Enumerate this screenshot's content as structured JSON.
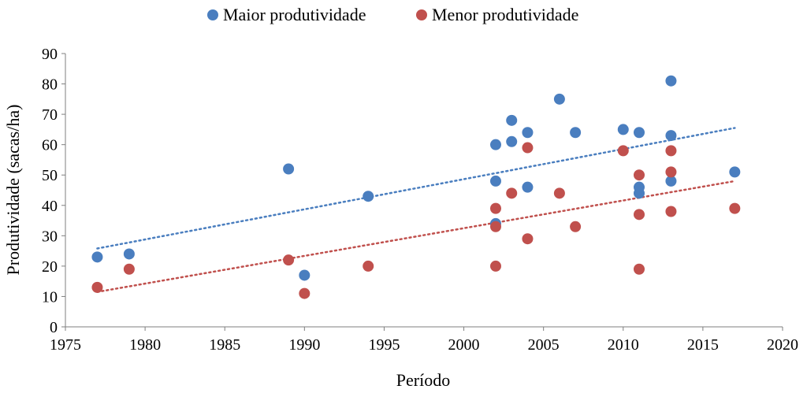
{
  "chart_data": {
    "type": "scatter",
    "xlabel": "Período",
    "ylabel": "Produtividade (sacas/ha)",
    "xlim": [
      1975,
      2020
    ],
    "ylim": [
      0,
      90
    ],
    "xticks": [
      1975,
      1980,
      1985,
      1990,
      1995,
      2000,
      2005,
      2010,
      2015,
      2020
    ],
    "yticks": [
      0,
      10,
      20,
      30,
      40,
      50,
      60,
      70,
      80,
      90
    ],
    "legend_position": "top-center",
    "grid": false,
    "series": [
      {
        "name": "Maior produtividade",
        "color": "#4a7ebf",
        "points": [
          [
            1977,
            23
          ],
          [
            1979,
            24
          ],
          [
            1989,
            52
          ],
          [
            1990,
            17
          ],
          [
            1994,
            43
          ],
          [
            2002,
            60
          ],
          [
            2002,
            48
          ],
          [
            2002,
            34
          ],
          [
            2003,
            68
          ],
          [
            2003,
            61
          ],
          [
            2004,
            64
          ],
          [
            2004,
            46
          ],
          [
            2006,
            75
          ],
          [
            2007,
            64
          ],
          [
            2010,
            65
          ],
          [
            2011,
            64
          ],
          [
            2011,
            46
          ],
          [
            2011,
            44
          ],
          [
            2013,
            81
          ],
          [
            2013,
            63
          ],
          [
            2013,
            48
          ],
          [
            2017,
            51
          ]
        ],
        "trendline": {
          "x": [
            1977,
            2017
          ],
          "y": [
            25.8,
            65.5
          ]
        }
      },
      {
        "name": "Menor produtividade",
        "color": "#c0504d",
        "points": [
          [
            1977,
            13
          ],
          [
            1979,
            19
          ],
          [
            1989,
            22
          ],
          [
            1990,
            11
          ],
          [
            1994,
            20
          ],
          [
            2002,
            39
          ],
          [
            2002,
            33
          ],
          [
            2002,
            20
          ],
          [
            2003,
            44
          ],
          [
            2004,
            59
          ],
          [
            2004,
            29
          ],
          [
            2006,
            44
          ],
          [
            2007,
            33
          ],
          [
            2010,
            58
          ],
          [
            2011,
            50
          ],
          [
            2011,
            37
          ],
          [
            2011,
            19
          ],
          [
            2013,
            58
          ],
          [
            2013,
            51
          ],
          [
            2013,
            38
          ],
          [
            2017,
            39
          ]
        ],
        "trendline": {
          "x": [
            1977,
            2017
          ],
          "y": [
            11.5,
            48.0
          ]
        }
      }
    ]
  }
}
